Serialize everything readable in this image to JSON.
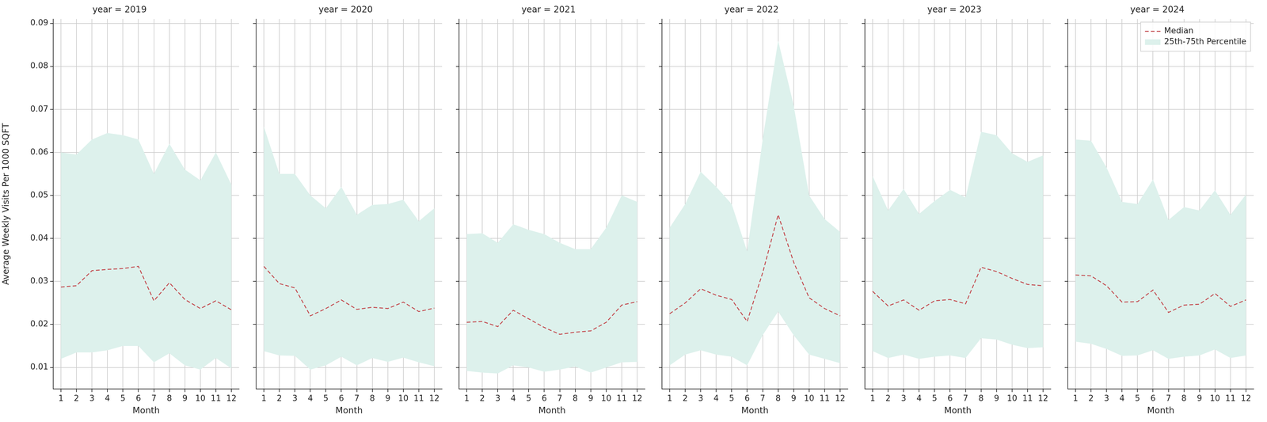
{
  "chart_data": [
    {
      "type": "line",
      "title": "year = 2019",
      "x_label": "Month",
      "y_label": "Average Weekly Visits Per 1000 SQFT",
      "categories": [
        1,
        2,
        3,
        4,
        5,
        6,
        7,
        8,
        9,
        10,
        11,
        12
      ],
      "ylim": [
        0.005,
        0.091
      ],
      "yticks": [
        0.01,
        0.02,
        0.03,
        0.04,
        0.05,
        0.06,
        0.07,
        0.08,
        0.09
      ],
      "grid": true,
      "series": [
        {
          "name": "Median",
          "color": "#c44e52",
          "line_style": "dashed",
          "values": [
            0.0287,
            0.029,
            0.0325,
            0.0328,
            0.033,
            0.0335,
            0.0255,
            0.0297,
            0.0258,
            0.0237,
            0.0255,
            0.0234
          ]
        },
        {
          "name": "25th-75th Percentile",
          "type": "band",
          "color": "#ddf1ec",
          "low": [
            0.012,
            0.0135,
            0.0135,
            0.014,
            0.015,
            0.015,
            0.0112,
            0.0133,
            0.0105,
            0.0095,
            0.0122,
            0.0098
          ],
          "high": [
            0.06,
            0.0595,
            0.063,
            0.0645,
            0.064,
            0.063,
            0.055,
            0.062,
            0.056,
            0.0535,
            0.06,
            0.0525
          ]
        }
      ]
    },
    {
      "type": "line",
      "title": "year = 2020",
      "x_label": "Month",
      "tick_labels": "x",
      "categories": [
        1,
        2,
        3,
        4,
        5,
        6,
        7,
        8,
        9,
        10,
        11,
        12
      ],
      "ylim": [
        0.005,
        0.091
      ],
      "yticks": [
        0.01,
        0.02,
        0.03,
        0.04,
        0.05,
        0.06,
        0.07,
        0.08,
        0.09
      ],
      "grid": true,
      "series": [
        {
          "name": "Median",
          "color": "#c44e52",
          "line_style": "dashed",
          "values": [
            0.0335,
            0.0295,
            0.0285,
            0.022,
            0.0237,
            0.0257,
            0.0235,
            0.024,
            0.0237,
            0.0252,
            0.023,
            0.0238
          ]
        },
        {
          "name": "25th-75th Percentile",
          "type": "band",
          "color": "#ddf1ec",
          "low": [
            0.0138,
            0.0128,
            0.0127,
            0.0095,
            0.0105,
            0.0125,
            0.0105,
            0.0122,
            0.0113,
            0.0123,
            0.0112,
            0.0103
          ],
          "high": [
            0.066,
            0.055,
            0.055,
            0.05,
            0.047,
            0.052,
            0.0455,
            0.0478,
            0.048,
            0.049,
            0.044,
            0.047
          ]
        }
      ]
    },
    {
      "type": "line",
      "title": "year = 2021",
      "x_label": "Month",
      "tick_labels": "x",
      "categories": [
        1,
        2,
        3,
        4,
        5,
        6,
        7,
        8,
        9,
        10,
        11,
        12
      ],
      "ylim": [
        0.005,
        0.091
      ],
      "yticks": [
        0.01,
        0.02,
        0.03,
        0.04,
        0.05,
        0.06,
        0.07,
        0.08,
        0.09
      ],
      "grid": true,
      "series": [
        {
          "name": "Median",
          "color": "#c44e52",
          "line_style": "dashed",
          "values": [
            0.0205,
            0.0207,
            0.0195,
            0.0233,
            0.0213,
            0.0193,
            0.0177,
            0.0182,
            0.0185,
            0.0205,
            0.0245,
            0.0253
          ]
        },
        {
          "name": "25th-75th Percentile",
          "type": "band",
          "color": "#ddf1ec",
          "low": [
            0.0092,
            0.0088,
            0.0086,
            0.0105,
            0.01,
            0.009,
            0.0095,
            0.0102,
            0.0088,
            0.01,
            0.0112,
            0.0113
          ],
          "high": [
            0.041,
            0.0412,
            0.039,
            0.0433,
            0.042,
            0.041,
            0.039,
            0.0375,
            0.0375,
            0.0425,
            0.05,
            0.0485
          ]
        }
      ]
    },
    {
      "type": "line",
      "title": "year = 2022",
      "x_label": "Month",
      "tick_labels": "x",
      "categories": [
        1,
        2,
        3,
        4,
        5,
        6,
        7,
        8,
        9,
        10,
        11,
        12
      ],
      "ylim": [
        0.005,
        0.091
      ],
      "yticks": [
        0.01,
        0.02,
        0.03,
        0.04,
        0.05,
        0.06,
        0.07,
        0.08,
        0.09
      ],
      "grid": true,
      "series": [
        {
          "name": "Median",
          "color": "#c44e52",
          "line_style": "dashed",
          "values": [
            0.0225,
            0.025,
            0.0283,
            0.0268,
            0.0258,
            0.0207,
            0.032,
            0.0455,
            0.0345,
            0.0262,
            0.0237,
            0.022
          ]
        },
        {
          "name": "25th-75th Percentile",
          "type": "band",
          "color": "#ddf1ec",
          "low": [
            0.0105,
            0.013,
            0.014,
            0.013,
            0.0125,
            0.0105,
            0.0175,
            0.023,
            0.0175,
            0.013,
            0.012,
            0.011
          ],
          "high": [
            0.0425,
            0.048,
            0.0555,
            0.052,
            0.048,
            0.037,
            0.063,
            0.086,
            0.071,
            0.05,
            0.0445,
            0.0415
          ]
        }
      ]
    },
    {
      "type": "line",
      "title": "year = 2023",
      "x_label": "Month",
      "tick_labels": "x",
      "categories": [
        1,
        2,
        3,
        4,
        5,
        6,
        7,
        8,
        9,
        10,
        11,
        12
      ],
      "ylim": [
        0.005,
        0.091
      ],
      "yticks": [
        0.01,
        0.02,
        0.03,
        0.04,
        0.05,
        0.06,
        0.07,
        0.08,
        0.09
      ],
      "grid": true,
      "series": [
        {
          "name": "Median",
          "color": "#c44e52",
          "line_style": "dashed",
          "values": [
            0.0277,
            0.0243,
            0.0257,
            0.0233,
            0.0255,
            0.0258,
            0.0248,
            0.0333,
            0.0323,
            0.0307,
            0.0293,
            0.029
          ]
        },
        {
          "name": "25th-75th Percentile",
          "type": "band",
          "color": "#ddf1ec",
          "low": [
            0.0138,
            0.0122,
            0.013,
            0.012,
            0.0125,
            0.0128,
            0.0122,
            0.0168,
            0.0165,
            0.0153,
            0.0145,
            0.0147
          ],
          "high": [
            0.0545,
            0.0465,
            0.0515,
            0.0457,
            0.0487,
            0.0513,
            0.0495,
            0.0648,
            0.064,
            0.0598,
            0.0578,
            0.0593
          ]
        }
      ]
    },
    {
      "type": "line",
      "title": "year = 2024",
      "x_label": "Month",
      "tick_labels": "x",
      "legend": "upper right",
      "categories": [
        1,
        2,
        3,
        4,
        5,
        6,
        7,
        8,
        9,
        10,
        11,
        12
      ],
      "ylim": [
        0.005,
        0.091
      ],
      "yticks": [
        0.01,
        0.02,
        0.03,
        0.04,
        0.05,
        0.06,
        0.07,
        0.08,
        0.09
      ],
      "grid": true,
      "series": [
        {
          "name": "Median",
          "color": "#c44e52",
          "line_style": "dashed",
          "values": [
            0.0315,
            0.0313,
            0.029,
            0.0252,
            0.0253,
            0.028,
            0.0228,
            0.0245,
            0.0247,
            0.0272,
            0.0242,
            0.0257
          ]
        },
        {
          "name": "25th-75th Percentile",
          "type": "band",
          "color": "#ddf1ec",
          "low": [
            0.016,
            0.0155,
            0.0143,
            0.0127,
            0.0128,
            0.014,
            0.012,
            0.0125,
            0.0128,
            0.0142,
            0.0122,
            0.0128
          ],
          "high": [
            0.063,
            0.0627,
            0.0565,
            0.0485,
            0.048,
            0.0537,
            0.0443,
            0.0473,
            0.0465,
            0.0512,
            0.0455,
            0.0502
          ]
        }
      ]
    }
  ]
}
